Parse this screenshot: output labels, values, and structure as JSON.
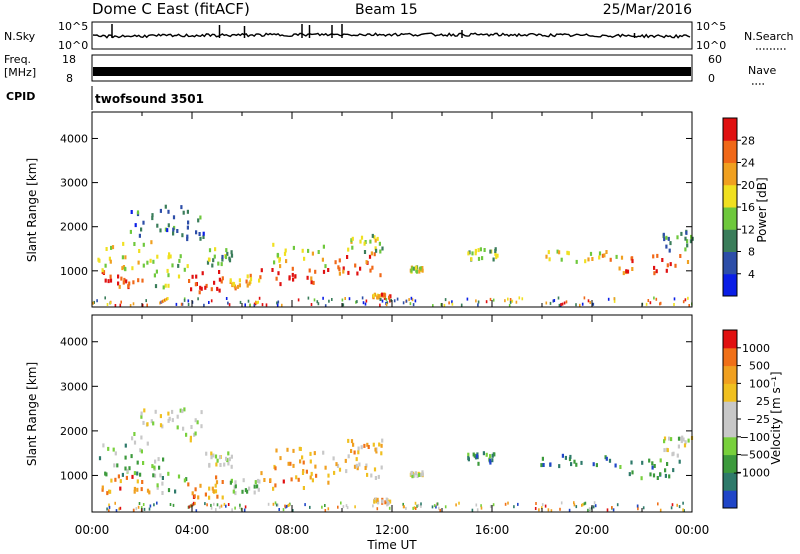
{
  "header": {
    "station": "Dome C East (fitACF)",
    "beam": "Beam 15",
    "date": "25/Mar/2016"
  },
  "top_panels": {
    "nsky_label": "N.Sky",
    "nsky_ticks": [
      "10^5",
      "10^0"
    ],
    "nsearch_label": "N.Search",
    "nsearch_ticks": [
      "10^5",
      "10^0"
    ],
    "freq_label_1": "Freq.",
    "freq_label_2": "[MHz]",
    "freq_ticks": [
      "18",
      "8"
    ],
    "nave_label": "Nave",
    "nave_ticks": [
      "60",
      "0"
    ],
    "cpid_label": "CPID",
    "cpid_value": "twofsound 3501"
  },
  "time_axis": {
    "label": "Time UT",
    "ticks": [
      "00:00",
      "04:00",
      "08:00",
      "12:00",
      "16:00",
      "20:00",
      "00:00"
    ]
  },
  "chart_data": [
    {
      "type": "heatmap",
      "name": "power",
      "ylabel": "Slant Range [km]",
      "x_range_hours": [
        0,
        24
      ],
      "ylim": [
        180,
        4600
      ],
      "y_ticks": [
        "1000",
        "2000",
        "3000",
        "4000"
      ],
      "colorbar_label": "Power [dB]",
      "colorbar_ticks": [
        "4",
        "8",
        "12",
        "16",
        "20",
        "24",
        "28"
      ],
      "colorbar_colors": [
        "#0a1ee6",
        "#2d4ea8",
        "#3a7d5a",
        "#6ec83c",
        "#f0e020",
        "#f0a020",
        "#f06818",
        "#e01010"
      ],
      "clusters": [
        {
          "t": [
            0.3,
            2.0
          ],
          "r": [
            600,
            1000
          ],
          "level": 0.9
        },
        {
          "t": [
            0.2,
            2.4
          ],
          "r": [
            1000,
            1700
          ],
          "level": 0.55
        },
        {
          "t": [
            2.4,
            3.8
          ],
          "r": [
            600,
            1400
          ],
          "level": 0.45
        },
        {
          "t": [
            3.8,
            5.2
          ],
          "r": [
            500,
            1000
          ],
          "level": 0.95
        },
        {
          "t": [
            4.5,
            5.6
          ],
          "r": [
            1100,
            1500
          ],
          "level": 0.4
        },
        {
          "t": [
            5.5,
            6.7
          ],
          "r": [
            600,
            900
          ],
          "level": 0.7
        },
        {
          "t": [
            6.7,
            9.5
          ],
          "r": [
            700,
            1100
          ],
          "level": 0.9
        },
        {
          "t": [
            7.2,
            9.3
          ],
          "r": [
            1100,
            1600
          ],
          "level": 0.55
        },
        {
          "t": [
            9.5,
            11.6
          ],
          "r": [
            900,
            1400
          ],
          "level": 0.85
        },
        {
          "t": [
            10.2,
            11.6
          ],
          "r": [
            1400,
            1800
          ],
          "level": 0.5
        },
        {
          "t": [
            1.5,
            4.5
          ],
          "r": [
            1700,
            2500
          ],
          "level": 0.25
        },
        {
          "t": [
            11.2,
            11.9
          ],
          "r": [
            380,
            470
          ],
          "level": 0.75
        },
        {
          "t": [
            12.7,
            13.2
          ],
          "r": [
            980,
            1080
          ],
          "level": 0.5
        },
        {
          "t": [
            15.0,
            16.2
          ],
          "r": [
            1250,
            1500
          ],
          "level": 0.45
        },
        {
          "t": [
            17.8,
            21.0
          ],
          "r": [
            1200,
            1450
          ],
          "level": 0.6
        },
        {
          "t": [
            21.0,
            24.0
          ],
          "r": [
            900,
            1350
          ],
          "level": 0.85
        },
        {
          "t": [
            22.8,
            24.0
          ],
          "r": [
            1400,
            1900
          ],
          "level": 0.3
        }
      ]
    },
    {
      "type": "heatmap",
      "name": "velocity",
      "ylabel": "Slant Range [km]",
      "x_range_hours": [
        0,
        24
      ],
      "ylim": [
        180,
        4600
      ],
      "y_ticks": [
        "1000",
        "2000",
        "3000",
        "4000"
      ],
      "colorbar_label": "Velocity [m s⁻¹]",
      "colorbar_ticks": [
        "1000",
        "500",
        "100",
        "25",
        "−25",
        "−100",
        "−500",
        "−1000"
      ],
      "colorbar_colors": [
        "#2046c8",
        "#2e7a6a",
        "#3c9a3c",
        "#78d03c",
        "#c8c8c8",
        "#c8c8c8",
        "#f0c020",
        "#f0a020",
        "#f07018",
        "#e01010"
      ],
      "clusters": [
        {
          "t": [
            0.3,
            2.4
          ],
          "r": [
            600,
            1000
          ],
          "level": 0.75
        },
        {
          "t": [
            0.2,
            2.4
          ],
          "r": [
            1000,
            1700
          ],
          "level": 0.3
        },
        {
          "t": [
            2.4,
            3.8
          ],
          "r": [
            600,
            1400
          ],
          "level": 0.35
        },
        {
          "t": [
            3.8,
            5.2
          ],
          "r": [
            500,
            1000
          ],
          "level": 0.78
        },
        {
          "t": [
            4.5,
            5.6
          ],
          "r": [
            1100,
            1500
          ],
          "level": 0.5
        },
        {
          "t": [
            5.5,
            6.7
          ],
          "r": [
            600,
            900
          ],
          "level": 0.4
        },
        {
          "t": [
            6.7,
            9.5
          ],
          "r": [
            700,
            1100
          ],
          "level": 0.78
        },
        {
          "t": [
            7.2,
            9.3
          ],
          "r": [
            1100,
            1600
          ],
          "level": 0.7
        },
        {
          "t": [
            9.5,
            11.6
          ],
          "r": [
            900,
            1400
          ],
          "level": 0.6
        },
        {
          "t": [
            10.2,
            11.6
          ],
          "r": [
            1400,
            1800
          ],
          "level": 0.72
        },
        {
          "t": [
            1.5,
            4.5
          ],
          "r": [
            1700,
            2500
          ],
          "level": 0.5
        },
        {
          "t": [
            11.2,
            11.9
          ],
          "r": [
            380,
            470
          ],
          "level": 0.7
        },
        {
          "t": [
            12.7,
            13.2
          ],
          "r": [
            980,
            1080
          ],
          "level": 0.5
        },
        {
          "t": [
            15.0,
            16.2
          ],
          "r": [
            1250,
            1500
          ],
          "level": 0.2
        },
        {
          "t": [
            17.8,
            21.0
          ],
          "r": [
            1200,
            1450
          ],
          "level": 0.15
        },
        {
          "t": [
            21.0,
            24.0
          ],
          "r": [
            900,
            1350
          ],
          "level": 0.2
        },
        {
          "t": [
            22.8,
            24.0
          ],
          "r": [
            1400,
            1900
          ],
          "level": 0.45
        }
      ]
    }
  ]
}
